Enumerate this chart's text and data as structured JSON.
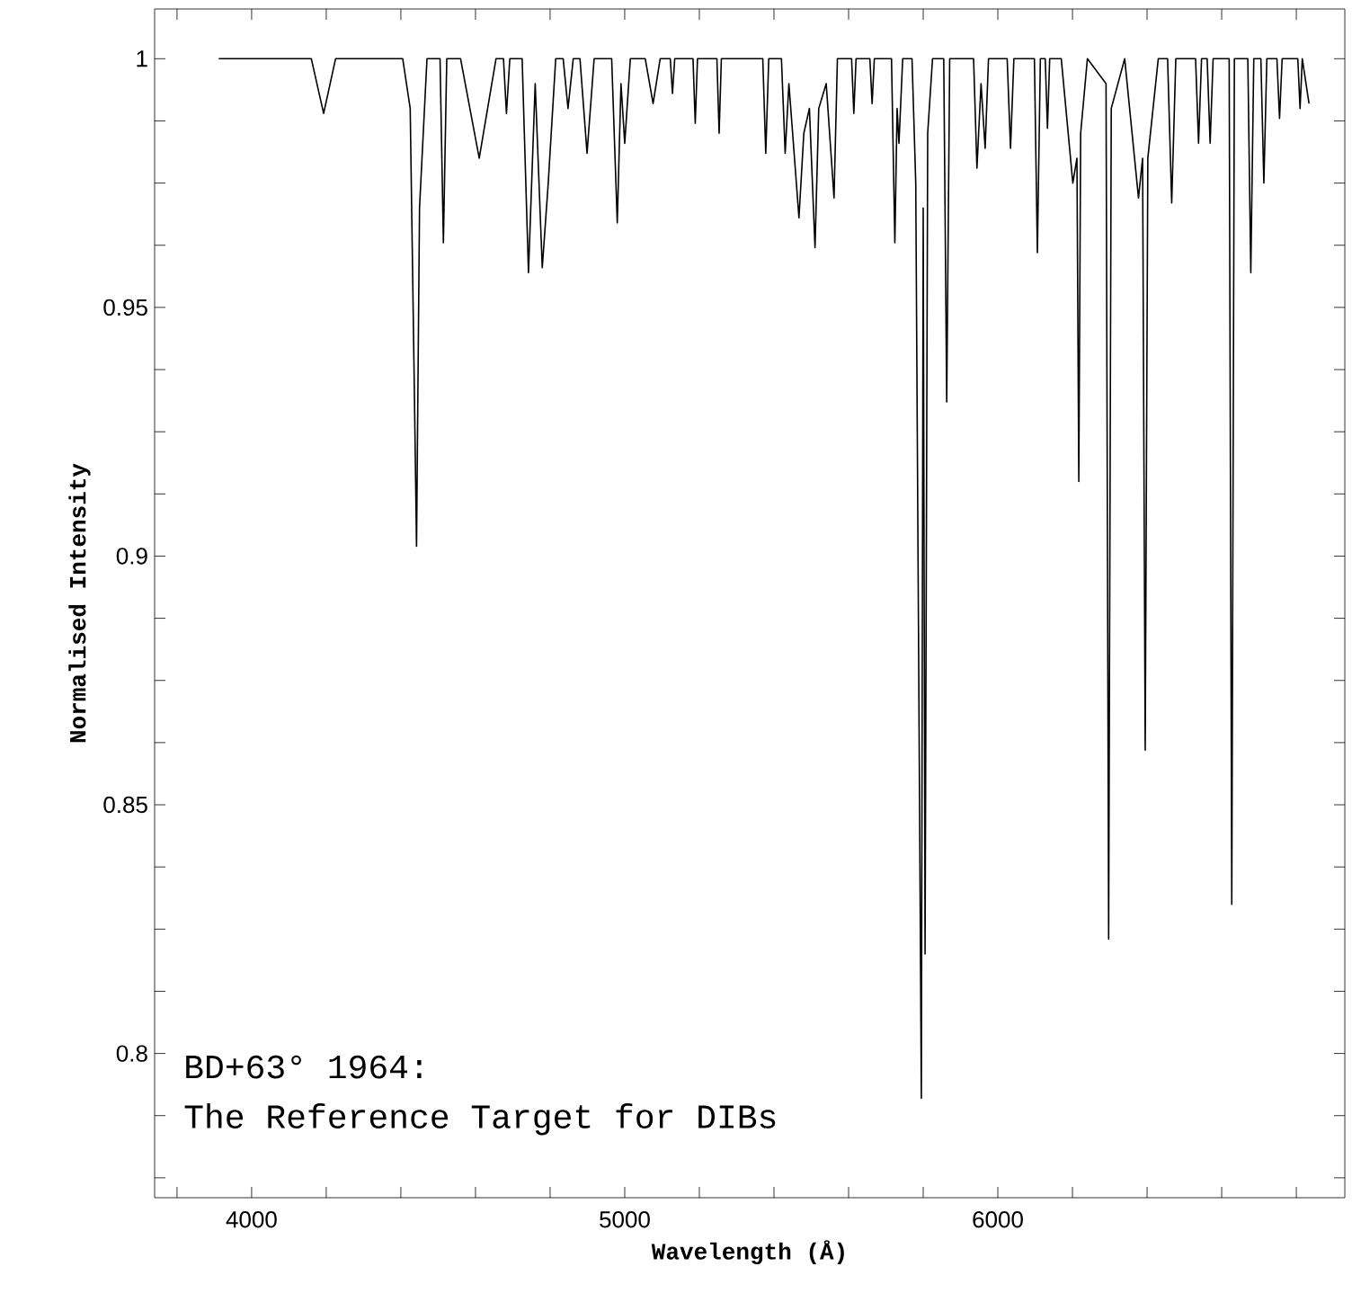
{
  "chart_data": {
    "type": "line",
    "xlabel": "Wavelength (Å)",
    "ylabel": "Normalised Intensity",
    "annotations": [
      "BD+63° 1964:",
      "The Reference Target for DIBs"
    ],
    "color": "#000000",
    "xlim": [
      3740,
      6930
    ],
    "ylim": [
      0.771,
      1.01
    ],
    "xticks": [
      {
        "value": 3800,
        "label": null
      },
      4000,
      {
        "value": 4200,
        "label": null
      },
      {
        "value": 4400,
        "label": null
      },
      {
        "value": 4600,
        "label": null
      },
      {
        "value": 4800,
        "label": null
      },
      5000,
      {
        "value": 5200,
        "label": null
      },
      {
        "value": 5400,
        "label": null
      },
      {
        "value": 5600,
        "label": null
      },
      {
        "value": 5800,
        "label": null
      },
      6000,
      {
        "value": 6200,
        "label": null
      },
      {
        "value": 6400,
        "label": null
      },
      {
        "value": 6600,
        "label": null
      },
      {
        "value": 6800,
        "label": null
      }
    ],
    "yticks": [
      {
        "value": 0.775,
        "label": null
      },
      {
        "value": 0.7875,
        "label": null
      },
      0.8,
      {
        "value": 0.8125,
        "label": null
      },
      {
        "value": 0.825,
        "label": null
      },
      {
        "value": 0.8375,
        "label": null
      },
      0.85,
      {
        "value": 0.8625,
        "label": null
      },
      {
        "value": 0.875,
        "label": null
      },
      {
        "value": 0.8875,
        "label": null
      },
      0.9,
      {
        "value": 0.9125,
        "label": null
      },
      {
        "value": 0.925,
        "label": null
      },
      {
        "value": 0.9375,
        "label": null
      },
      0.95,
      {
        "value": 0.9625,
        "label": null
      },
      {
        "value": 0.975,
        "label": null
      },
      {
        "value": 0.9875,
        "label": null
      },
      1
    ],
    "x": [
      3912,
      4160,
      4193,
      4225,
      4405,
      4425,
      4436,
      4442,
      4450,
      4470,
      4505,
      4514,
      4523,
      4560,
      4610,
      4655,
      4675,
      4683,
      4692,
      4725,
      4742,
      4760,
      4779,
      4795,
      4815,
      4835,
      4848,
      4862,
      4880,
      4899,
      4918,
      4965,
      4980,
      4990,
      5000,
      5015,
      5055,
      5076,
      5095,
      5122,
      5128,
      5134,
      5183,
      5189,
      5195,
      5247,
      5253,
      5259,
      5370,
      5378,
      5386,
      5420,
      5430,
      5440,
      5467,
      5480,
      5495,
      5510,
      5520,
      5540,
      5561,
      5570,
      5608,
      5614,
      5620,
      5657,
      5663,
      5669,
      5715,
      5724,
      5730,
      5735,
      5745,
      5770,
      5780,
      5795,
      5800,
      5805,
      5812,
      5825,
      5855,
      5863,
      5871,
      5935,
      5944,
      5955,
      5966,
      5975,
      6025,
      6034,
      6043,
      6098,
      6106,
      6114,
      6127,
      6133,
      6139,
      6170,
      6201,
      6212,
      6217,
      6222,
      6240,
      6290,
      6297,
      6304,
      6340,
      6377,
      6388,
      6395,
      6402,
      6430,
      6455,
      6466,
      6477,
      6530,
      6538,
      6546,
      6561,
      6569,
      6577,
      6620,
      6627,
      6634,
      6670,
      6678,
      6686,
      6705,
      6713,
      6721,
      6748,
      6755,
      6762,
      6804,
      6810,
      6816,
      6834
    ],
    "values": [
      1.0,
      1.0,
      0.989,
      1.0,
      1.0,
      0.99,
      0.934,
      0.902,
      0.97,
      1.0,
      1.0,
      0.963,
      1.0,
      1.0,
      0.98,
      1.0,
      1.0,
      0.989,
      1.0,
      1.0,
      0.957,
      0.995,
      0.958,
      0.975,
      1.0,
      1.0,
      0.99,
      1.0,
      1.0,
      0.981,
      1.0,
      1.0,
      0.967,
      0.995,
      0.983,
      1.0,
      1.0,
      0.991,
      1.0,
      1.0,
      0.993,
      1.0,
      1.0,
      0.987,
      1.0,
      1.0,
      0.985,
      1.0,
      1.0,
      0.981,
      1.0,
      1.0,
      0.981,
      0.995,
      0.968,
      0.985,
      0.99,
      0.962,
      0.99,
      0.995,
      0.972,
      1.0,
      1.0,
      0.989,
      1.0,
      1.0,
      0.991,
      1.0,
      1.0,
      0.963,
      0.99,
      0.983,
      1.0,
      1.0,
      0.975,
      0.791,
      0.97,
      0.82,
      0.985,
      1.0,
      1.0,
      0.931,
      1.0,
      1.0,
      0.978,
      0.995,
      0.982,
      1.0,
      1.0,
      0.982,
      1.0,
      1.0,
      0.961,
      1.0,
      1.0,
      0.986,
      1.0,
      1.0,
      0.975,
      0.98,
      0.915,
      0.985,
      1.0,
      0.995,
      0.823,
      0.99,
      1.0,
      0.972,
      0.98,
      0.861,
      0.98,
      1.0,
      1.0,
      0.971,
      1.0,
      1.0,
      0.983,
      1.0,
      1.0,
      0.983,
      1.0,
      1.0,
      0.83,
      1.0,
      1.0,
      0.957,
      1.0,
      1.0,
      0.975,
      1.0,
      1.0,
      0.988,
      1.0,
      1.0,
      0.99,
      1.0,
      0.991
    ]
  }
}
